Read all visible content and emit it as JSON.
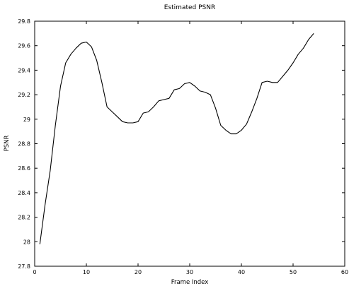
{
  "chart_data": {
    "type": "line",
    "title": "Estimated PSNR",
    "xlabel": "Frame Index",
    "ylabel": "PSNR",
    "xlim": [
      0,
      60
    ],
    "ylim": [
      27.8,
      29.8
    ],
    "xticks": [
      0,
      10,
      20,
      30,
      40,
      50,
      60
    ],
    "xtick_labels": [
      "0",
      "10",
      "20",
      "30",
      "40",
      "50",
      "60"
    ],
    "yticks": [
      27.8,
      28,
      28.2,
      28.4,
      28.6,
      28.8,
      29,
      29.2,
      29.4,
      29.6,
      29.8
    ],
    "ytick_labels": [
      "27.8",
      "28",
      "28.2",
      "28.4",
      "28.6",
      "28.8",
      "29",
      "29.2",
      "29.4",
      "29.6",
      "29.8"
    ],
    "grid": false,
    "series": [
      {
        "color": "#000000",
        "x": [
          1,
          2,
          3,
          4,
          5,
          6,
          7,
          8,
          9,
          10,
          11,
          12,
          13,
          14,
          15,
          16,
          17,
          18,
          19,
          20,
          21,
          22,
          23,
          24,
          25,
          26,
          27,
          28,
          29,
          30,
          31,
          32,
          33,
          34,
          35,
          36,
          37,
          38,
          39,
          40,
          41,
          42,
          43,
          44,
          45,
          46,
          47,
          48,
          49,
          50,
          51,
          52,
          53,
          54
        ],
        "y": [
          27.98,
          28.3,
          28.58,
          28.95,
          29.27,
          29.46,
          29.53,
          29.58,
          29.62,
          29.63,
          29.59,
          29.48,
          29.3,
          29.1,
          29.06,
          29.02,
          28.98,
          28.97,
          28.97,
          28.98,
          29.05,
          29.06,
          29.1,
          29.15,
          29.16,
          29.17,
          29.24,
          29.25,
          29.29,
          29.3,
          29.27,
          29.23,
          29.22,
          29.2,
          29.09,
          28.95,
          28.91,
          28.88,
          28.88,
          28.91,
          28.96,
          29.06,
          29.17,
          29.3,
          29.31,
          29.3,
          29.3,
          29.35,
          29.4,
          29.46,
          29.53,
          29.58,
          29.65,
          29.7
        ]
      }
    ]
  }
}
